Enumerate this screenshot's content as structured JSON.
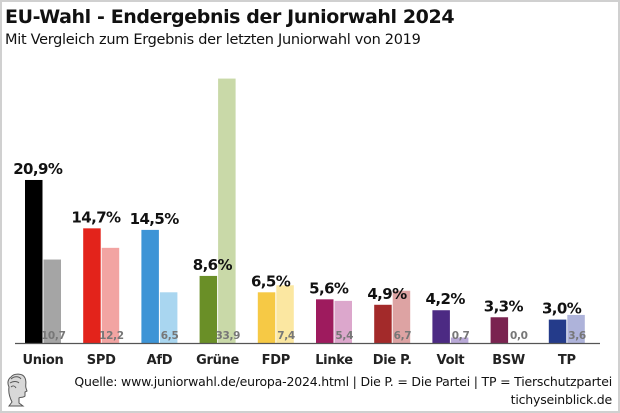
{
  "header": {
    "title": "EU-Wahl - Endergebnis der Juniorwahl 2024",
    "subtitle": "Mit Vergleich zum Ergebnis der letzten Juniorwahl von 2019"
  },
  "footer": {
    "source": "Quelle: www.juniorwahl.de/europa-2024.html | Die P. = Die Partei | TP = Tierschutzpartei",
    "brand": "tichyseinblick.de",
    "logo_icon": "classical-head-logo-icon"
  },
  "chart_data": {
    "type": "bar",
    "title": "EU-Wahl - Endergebnis der Juniorwahl 2024",
    "subtitle": "Mit Vergleich zum Ergebnis der letzten Juniorwahl von 2019",
    "xlabel": "",
    "ylabel": "",
    "ylim": [
      0,
      35
    ],
    "grid": false,
    "legend": "none",
    "categories": [
      "Union",
      "SPD",
      "AfD",
      "Grüne",
      "FDP",
      "Linke",
      "Die P.",
      "Volt",
      "BSW",
      "TP"
    ],
    "series": [
      {
        "name": "2024",
        "values": [
          20.9,
          14.7,
          14.5,
          8.6,
          6.5,
          5.6,
          4.9,
          4.2,
          3.3,
          3.0
        ],
        "labels": [
          "20,9%",
          "14,7%",
          "14,5%",
          "8,6%",
          "6,5%",
          "5,6%",
          "4,9%",
          "4,2%",
          "3,3%",
          "3,0%"
        ],
        "colors": [
          "#000000",
          "#e3231b",
          "#3d94d6",
          "#6a8f27",
          "#f6c945",
          "#9e1b5e",
          "#a32a2a",
          "#4c2a83",
          "#7a2350",
          "#243b8a"
        ]
      },
      {
        "name": "2019",
        "values": [
          10.7,
          12.2,
          6.5,
          33.9,
          7.4,
          5.4,
          6.7,
          0.7,
          0.0,
          3.6
        ],
        "labels": [
          "10,7",
          "12,2",
          "6,5",
          "33,9",
          "7,4",
          "5,4",
          "6,7",
          "0,7",
          "0,0",
          "3,6"
        ],
        "colors": [
          "#a5a5a5",
          "#f2a4a2",
          "#a9d6f0",
          "#c9d9a8",
          "#fbe7a1",
          "#dca7cc",
          "#dda3a3",
          "#b9a9d7",
          "#d9b6c6",
          "#aeb3da"
        ]
      }
    ]
  }
}
